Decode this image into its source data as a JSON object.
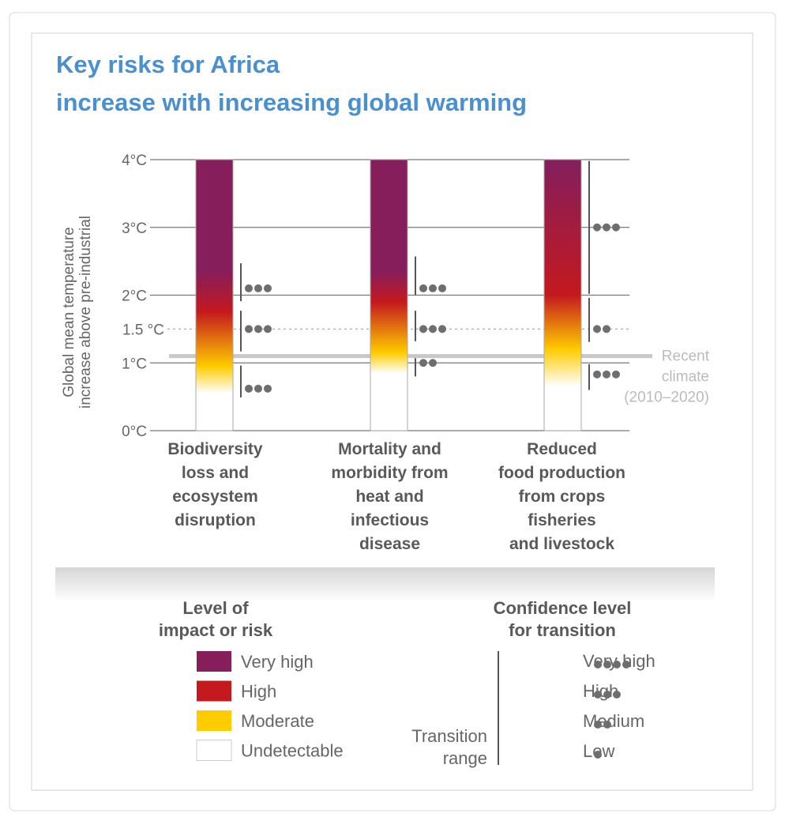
{
  "title": [
    "Key risks for Africa",
    "increase with increasing global warming"
  ],
  "colors": {
    "title": "#4a8fd0",
    "very_high": "#861e5b",
    "high": "#c4191e",
    "moderate": "#ffcc00",
    "undetectable": "#ffffff",
    "recent_climate": "#c8c8c8",
    "dots": "#6e6e6e"
  },
  "chart_data": {
    "type": "burning-embers",
    "ylabel": [
      "Global mean temperature",
      "increase above pre-industrial"
    ],
    "ylim": [
      0,
      4
    ],
    "yticks": [
      {
        "value": 0,
        "label": "0°C"
      },
      {
        "value": 1,
        "label": "1°C"
      },
      {
        "value": 1.5,
        "label": "1.5 °C",
        "dotted": true
      },
      {
        "value": 2,
        "label": "2°C"
      },
      {
        "value": 3,
        "label": "3°C"
      },
      {
        "value": 4,
        "label": "4°C"
      }
    ],
    "recent_climate": {
      "value": 1.1,
      "label": [
        "Recent",
        "climate",
        "(2010–2020)"
      ]
    },
    "embers": [
      {
        "label": [
          "Biodiversity",
          "loss and",
          "ecosystem",
          "disruption"
        ],
        "stops": [
          {
            "t": 0.55,
            "level": "undetectable"
          },
          {
            "t": 0.95,
            "level": "moderate"
          },
          {
            "t": 1.75,
            "level": "high"
          },
          {
            "t": 2.35,
            "level": "very_high"
          }
        ],
        "transitions": [
          {
            "from": 0.49,
            "to": 0.96,
            "dots_at": 0.62,
            "confidence": 3
          },
          {
            "from": 1.17,
            "to": 1.77,
            "dots_at": 1.5,
            "confidence": 3
          },
          {
            "from": 1.91,
            "to": 2.47,
            "dots_at": 2.1,
            "confidence": 3
          }
        ]
      },
      {
        "label": [
          "Mortality and",
          "morbidity from",
          "heat and",
          "infectious",
          "disease"
        ],
        "stops": [
          {
            "t": 0.85,
            "level": "undetectable"
          },
          {
            "t": 1.15,
            "level": "moderate"
          },
          {
            "t": 1.9,
            "level": "high"
          },
          {
            "t": 2.35,
            "level": "very_high"
          }
        ],
        "transitions": [
          {
            "from": 0.8,
            "to": 1.07,
            "dots_at": 1.0,
            "confidence": 2
          },
          {
            "from": 1.32,
            "to": 1.77,
            "dots_at": 1.5,
            "confidence": 3
          },
          {
            "from": 2.0,
            "to": 2.57,
            "dots_at": 2.1,
            "confidence": 3
          }
        ]
      },
      {
        "label": [
          "Reduced",
          "food production",
          "from crops",
          "fisheries",
          "and livestock"
        ],
        "stops": [
          {
            "t": 0.65,
            "level": "undetectable"
          },
          {
            "t": 1.2,
            "level": "moderate"
          },
          {
            "t": 2.0,
            "level": "high"
          },
          {
            "t": 3.9,
            "level": "very_high"
          }
        ],
        "transitions": [
          {
            "from": 0.6,
            "to": 0.98,
            "dots_at": 0.83,
            "confidence": 3
          },
          {
            "from": 1.31,
            "to": 1.96,
            "dots_at": 1.5,
            "confidence": 2
          },
          {
            "from": 2.02,
            "to": 3.98,
            "dots_at": 3.0,
            "confidence": 3
          }
        ]
      }
    ]
  },
  "legend_levels": {
    "title": [
      "Level of",
      "impact or risk"
    ],
    "items": [
      {
        "label": "Very high",
        "level": "very_high"
      },
      {
        "label": "High",
        "level": "high"
      },
      {
        "label": "Moderate",
        "level": "moderate"
      },
      {
        "label": "Undetectable",
        "level": "undetectable"
      }
    ]
  },
  "legend_confidence": {
    "title": [
      "Confidence level",
      "for transition"
    ],
    "range_label": [
      "Transition",
      "range"
    ],
    "items": [
      {
        "label": "Very high",
        "dots": 4
      },
      {
        "label": "High",
        "dots": 3
      },
      {
        "label": "Medium",
        "dots": 2
      },
      {
        "label": "Low",
        "dots": 1
      }
    ]
  }
}
